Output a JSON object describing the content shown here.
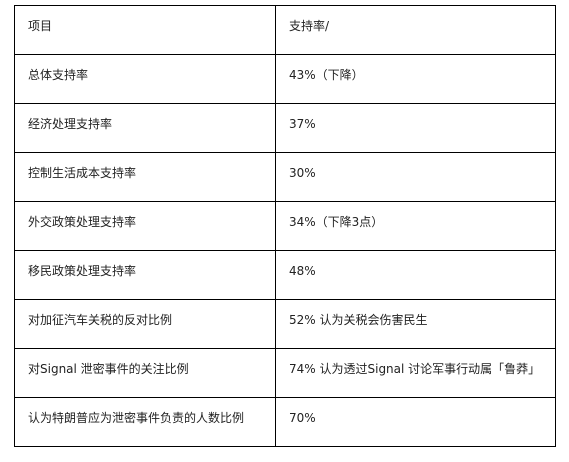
{
  "table": {
    "headers": [
      "项目",
      "支持率/"
    ],
    "rows": [
      [
        "总体支持率",
        "43%（下降）"
      ],
      [
        "经济处理支持率",
        "37%"
      ],
      [
        "控制生活成本支持率",
        "30%"
      ],
      [
        "外交政策处理支持率",
        "34%（下降3点）"
      ],
      [
        "移民政策处理支持率",
        "48%"
      ],
      [
        "对加征汽车关税的反对比例",
        "52% 认为关税会伤害民生"
      ],
      [
        "对Signal 泄密事件的关注比例",
        "74% 认为透过Signal 讨论军事行动属「鲁莽」"
      ],
      [
        "认为特朗普应为泄密事件负责的人数比例",
        "70%"
      ]
    ]
  }
}
